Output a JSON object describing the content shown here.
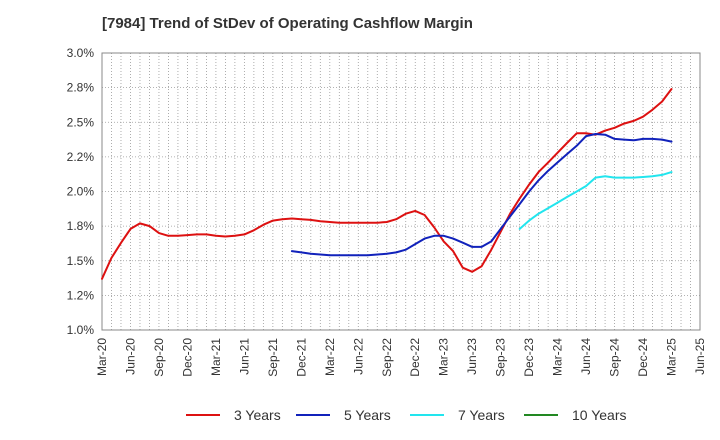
{
  "chart_data": {
    "type": "line",
    "title": "[7984]  Trend of StDev of Operating Cashflow Margin",
    "xlabel": "",
    "ylabel": "",
    "ylim": [
      1.0,
      3.0
    ],
    "yticks": [
      "3.0%",
      "2.8%",
      "2.5%",
      "2.2%",
      "2.0%",
      "1.8%",
      "1.5%",
      "1.2%",
      "1.0%"
    ],
    "ytick_values": [
      3.0,
      2.75,
      2.5,
      2.25,
      2.0,
      1.75,
      1.5,
      1.25,
      1.0
    ],
    "categories": [
      "Mar-20",
      "Jun-20",
      "Sep-20",
      "Dec-20",
      "Mar-21",
      "Jun-21",
      "Sep-21",
      "Dec-21",
      "Mar-22",
      "Jun-22",
      "Sep-22",
      "Dec-22",
      "Mar-23",
      "Jun-23",
      "Sep-23",
      "Dec-23",
      "Mar-24",
      "Jun-24",
      "Sep-24",
      "Dec-24",
      "Mar-25",
      "Jun-25"
    ],
    "grid": true,
    "legend_position": "bottom",
    "series": [
      {
        "name": "3 Years",
        "color": "#dd1111",
        "x": [
          0,
          0.33,
          0.67,
          1,
          1.33,
          1.67,
          2,
          2.33,
          2.67,
          3,
          3.33,
          3.67,
          4,
          4.33,
          4.67,
          5,
          5.33,
          5.67,
          6,
          6.33,
          6.67,
          7,
          7.33,
          7.67,
          8,
          8.33,
          8.67,
          9,
          9.33,
          9.67,
          10,
          10.33,
          10.67,
          11,
          11.33,
          11.67,
          12,
          12.33,
          12.67,
          13,
          13.33,
          13.67,
          14,
          14.33,
          14.67,
          15,
          15.33,
          15.67,
          16,
          16.33,
          16.67,
          17,
          17.33,
          17.67,
          18,
          18.33,
          18.67,
          19,
          19.33,
          19.67,
          20
        ],
        "values": [
          1.37,
          1.52,
          1.63,
          1.73,
          1.77,
          1.75,
          1.7,
          1.68,
          1.68,
          1.685,
          1.69,
          1.69,
          1.68,
          1.675,
          1.68,
          1.69,
          1.72,
          1.76,
          1.79,
          1.8,
          1.805,
          1.8,
          1.795,
          1.785,
          1.78,
          1.775,
          1.775,
          1.775,
          1.775,
          1.775,
          1.78,
          1.8,
          1.84,
          1.86,
          1.83,
          1.74,
          1.64,
          1.57,
          1.45,
          1.42,
          1.46,
          1.58,
          1.71,
          1.84,
          1.95,
          2.05,
          2.14,
          2.21,
          2.28,
          2.35,
          2.42,
          2.42,
          2.41,
          2.44,
          2.46,
          2.49,
          2.51,
          2.54,
          2.59,
          2.65,
          2.74
        ]
      },
      {
        "name": "5 Years",
        "color": "#1122bb",
        "x": [
          6.67,
          7,
          7.33,
          7.67,
          8,
          8.33,
          8.67,
          9,
          9.33,
          9.67,
          10,
          10.33,
          10.67,
          11,
          11.33,
          11.67,
          12,
          12.33,
          12.67,
          13,
          13.33,
          13.67,
          14,
          14.33,
          14.67,
          15,
          15.33,
          15.67,
          16,
          16.33,
          16.67,
          17,
          17.33,
          17.67,
          18,
          18.33,
          18.67,
          19,
          19.33,
          19.67,
          20
        ],
        "values": [
          1.57,
          1.56,
          1.55,
          1.545,
          1.54,
          1.54,
          1.54,
          1.54,
          1.54,
          1.545,
          1.55,
          1.56,
          1.58,
          1.62,
          1.66,
          1.68,
          1.68,
          1.66,
          1.63,
          1.6,
          1.6,
          1.64,
          1.73,
          1.82,
          1.91,
          2.0,
          2.08,
          2.15,
          2.21,
          2.27,
          2.33,
          2.4,
          2.415,
          2.41,
          2.38,
          2.375,
          2.37,
          2.38,
          2.38,
          2.375,
          2.36
        ]
      },
      {
        "name": "7 Years",
        "color": "#22e5ee",
        "x": [
          14.67,
          15,
          15.33,
          15.67,
          16,
          16.33,
          16.67,
          17,
          17.33,
          17.67,
          18,
          18.33,
          18.67,
          19,
          19.33,
          19.67,
          20
        ],
        "values": [
          1.73,
          1.79,
          1.84,
          1.88,
          1.92,
          1.96,
          2.0,
          2.04,
          2.1,
          2.11,
          2.1,
          2.1,
          2.1,
          2.105,
          2.11,
          2.12,
          2.14
        ]
      },
      {
        "name": "10 Years",
        "color": "#228822",
        "x": [],
        "values": []
      }
    ]
  }
}
